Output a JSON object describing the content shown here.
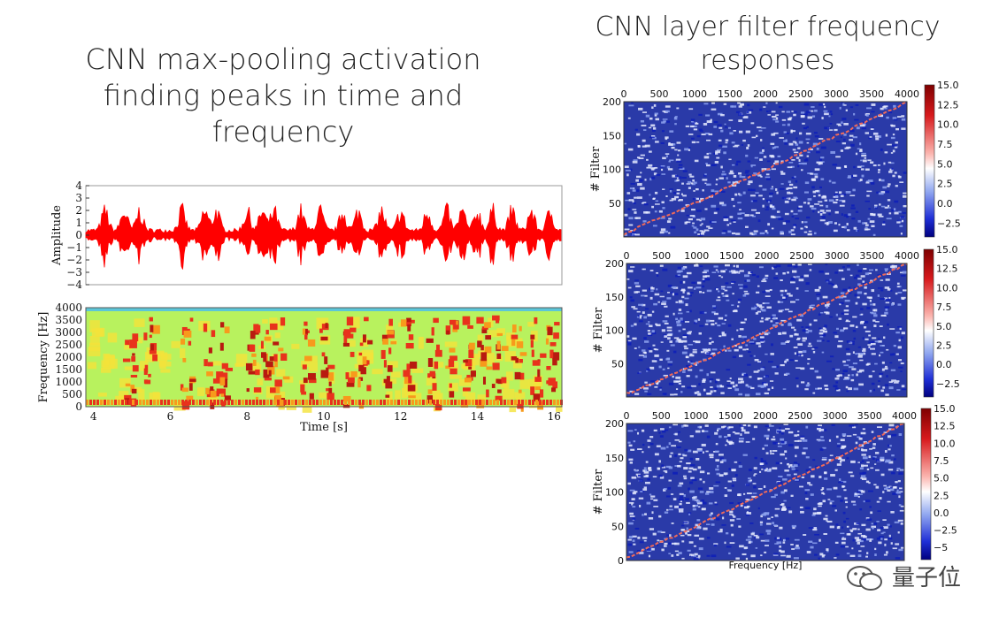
{
  "left_title": "CNN max-pooling activation finding peaks in time and frequency",
  "right_title": "CNN layer filter frequency responses",
  "watermark": "量子位",
  "chart_data": [
    {
      "type": "line",
      "name": "waveform",
      "xlabel": "",
      "ylabel": "Amplitude",
      "xlim": [
        3.8,
        16.2
      ],
      "ylim": [
        -4,
        4
      ],
      "yticks": [
        "4",
        "3",
        "2",
        "1",
        "0",
        "−1",
        "−2",
        "−3",
        "−4"
      ],
      "series_color": "#ff0000"
    },
    {
      "type": "heatmap",
      "name": "spectrogram",
      "xlabel": "Time [s]",
      "ylabel": "Frequency [Hz]",
      "xlim": [
        3.8,
        16.2
      ],
      "ylim": [
        0,
        4000
      ],
      "xticks": [
        "4",
        "6",
        "8",
        "10",
        "12",
        "14",
        "16"
      ],
      "yticks": [
        "4000",
        "3500",
        "3000",
        "2500",
        "2000",
        "1500",
        "1000",
        "500",
        "0"
      ]
    },
    {
      "type": "heatmap",
      "name": "filter-response-1",
      "xlabel": "",
      "ylabel": "# Filter",
      "xlim": [
        0,
        4000
      ],
      "ylim": [
        0,
        200
      ],
      "xticks": [
        "0",
        "500",
        "1000",
        "1500",
        "2000",
        "2500",
        "3000",
        "3500",
        "4000"
      ],
      "yticks": [
        "200",
        "150",
        "100",
        "50"
      ],
      "colorbar_ticks": [
        "15.0",
        "12.5",
        "10.0",
        "7.5",
        "5.0",
        "2.5",
        "0.0",
        "−2.5"
      ]
    },
    {
      "type": "heatmap",
      "name": "filter-response-2",
      "xlabel": "",
      "ylabel": "# Filter",
      "xlim": [
        0,
        4000
      ],
      "ylim": [
        0,
        200
      ],
      "xticks": [
        "0",
        "500",
        "1000",
        "1500",
        "2000",
        "2500",
        "3000",
        "3500",
        "4000"
      ],
      "yticks": [
        "200",
        "150",
        "100",
        "50"
      ],
      "colorbar_ticks": [
        "15.0",
        "12.5",
        "10.0",
        "7.5",
        "5.0",
        "2.5",
        "0.0",
        "−2.5"
      ]
    },
    {
      "type": "heatmap",
      "name": "filter-response-3",
      "xlabel": "Frequency [Hz]",
      "ylabel": "# Filter",
      "xlim": [
        0,
        4000
      ],
      "ylim": [
        0,
        200
      ],
      "xticks": [
        "0",
        "500",
        "1000",
        "1500",
        "2000",
        "2500",
        "3000",
        "3500",
        "4000"
      ],
      "yticks": [
        "200",
        "150",
        "100",
        "50",
        "0"
      ],
      "colorbar_ticks": [
        "15.0",
        "12.5",
        "10.0",
        "7.5",
        "5.0",
        "2.5",
        "0.0",
        "−2.5",
        "−5"
      ]
    }
  ]
}
